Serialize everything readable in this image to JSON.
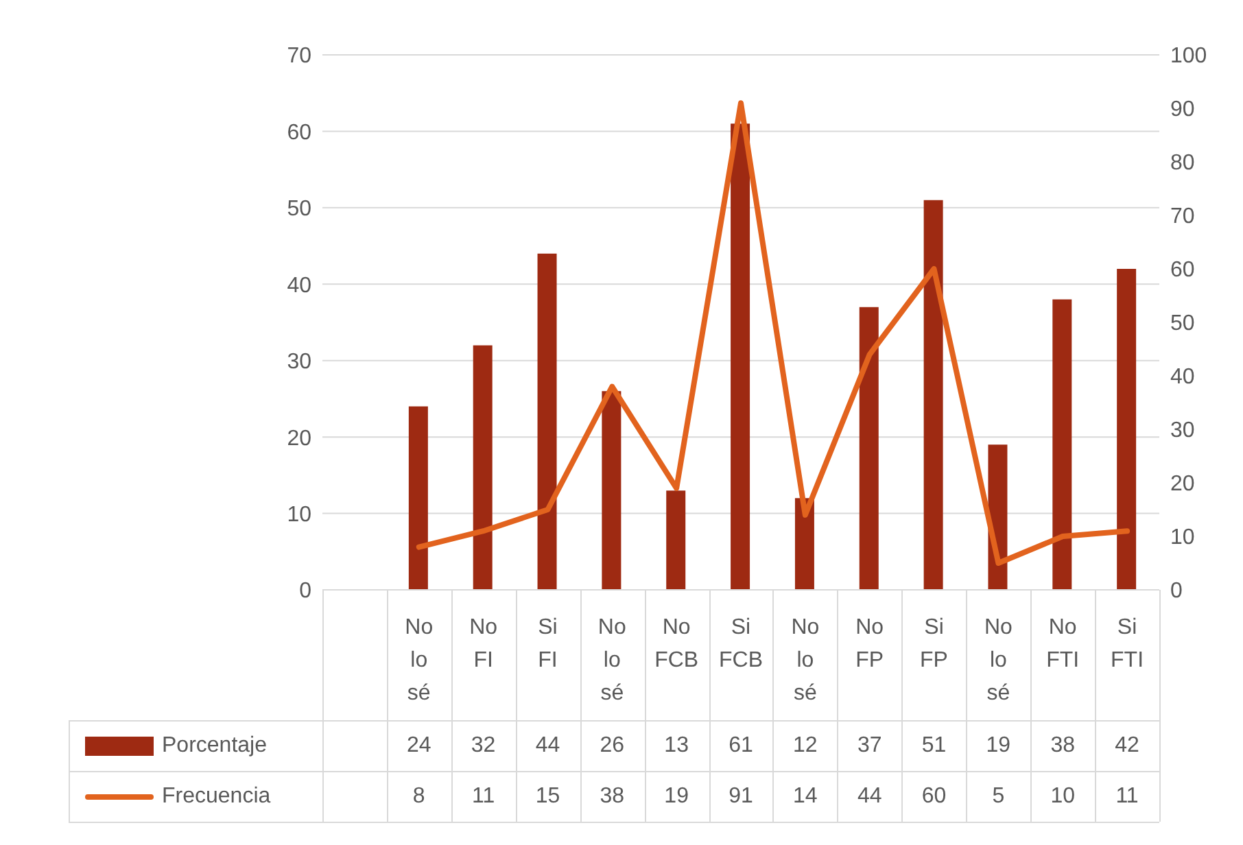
{
  "chart_data": {
    "type": "bar",
    "categories": [
      null,
      "No lo sé",
      "No FI",
      "Si FI",
      "No lo sé",
      "No FCB",
      "Si FCB",
      "No lo sé",
      "No FP",
      "Si FP",
      "No lo sé",
      "No FTI",
      "Si FTI"
    ],
    "series": [
      {
        "name": "Porcentaje",
        "color": "#9e2a12",
        "values": [
          null,
          24,
          32,
          44,
          26,
          13,
          61,
          12,
          37,
          51,
          19,
          38,
          42
        ]
      },
      {
        "name": "Frecuencia",
        "type": "line",
        "axis": "y2",
        "color": "#e2631e",
        "values": [
          null,
          8,
          11,
          15,
          38,
          19,
          91,
          14,
          44,
          60,
          5,
          10,
          11
        ]
      }
    ],
    "ylim": [
      0,
      70
    ],
    "yticks": [
      0,
      10,
      20,
      30,
      40,
      50,
      60,
      70
    ],
    "y2lim": [
      0,
      100
    ],
    "y2ticks": [
      0,
      10,
      20,
      30,
      40,
      50,
      60,
      70,
      80,
      90,
      100
    ],
    "grid": "y",
    "legend": "bottom",
    "data_labels": true,
    "marker": "none",
    "line_style": "solid"
  }
}
